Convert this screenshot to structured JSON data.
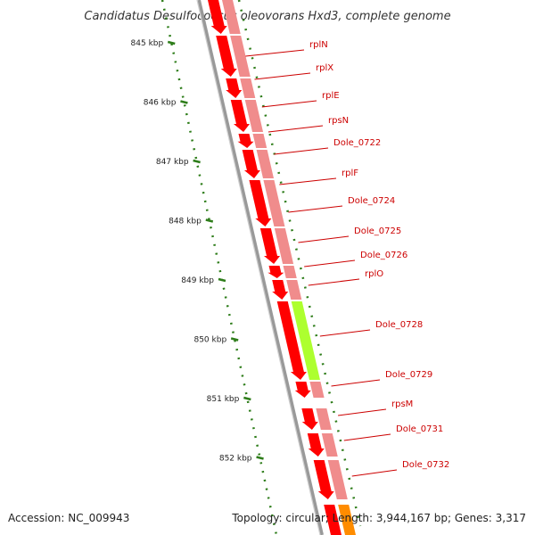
{
  "title": "Candidatus Desulfococcus oleovorans Hxd3, complete genome",
  "footer": {
    "accession": "Accession: NC_009943",
    "topology": "Topology: circular; Length: 3,944,167 bp; Genes: 3,317"
  },
  "scale_ticks": [
    {
      "label": "845 kbp",
      "kbp": 845
    },
    {
      "label": "846 kbp",
      "kbp": 846
    },
    {
      "label": "847 kbp",
      "kbp": 847
    },
    {
      "label": "848 kbp",
      "kbp": 848
    },
    {
      "label": "849 kbp",
      "kbp": 849
    },
    {
      "label": "850 kbp",
      "kbp": 850
    },
    {
      "label": "851 kbp",
      "kbp": 851
    },
    {
      "label": "852 kbp",
      "kbp": 852
    }
  ],
  "genes": [
    {
      "name": "rplN",
      "category": "ribosomal"
    },
    {
      "name": "rplX",
      "category": "ribosomal"
    },
    {
      "name": "rplE",
      "category": "ribosomal"
    },
    {
      "name": "rpsN",
      "category": "ribosomal"
    },
    {
      "name": "Dole_0722",
      "category": "ribosomal"
    },
    {
      "name": "rplF",
      "category": "ribosomal"
    },
    {
      "name": "Dole_0724",
      "category": "ribosomal"
    },
    {
      "name": "Dole_0725",
      "category": "ribosomal"
    },
    {
      "name": "Dole_0726",
      "category": "ribosomal"
    },
    {
      "name": "rplO",
      "category": "ribosomal"
    },
    {
      "name": "Dole_0728",
      "category": "transport"
    },
    {
      "name": "Dole_0729",
      "category": "ribosomal"
    },
    {
      "name": "rpsM",
      "category": "ribosomal"
    },
    {
      "name": "Dole_0731",
      "category": "ribosomal"
    },
    {
      "name": "Dole_0732",
      "category": "ribosomal"
    }
  ],
  "colors": {
    "gene_arrow": "#ff0000",
    "gene_category_default": "#f08c8c",
    "gene_category_highlight": "#adff2f",
    "next_gene_category": "#ff8c00",
    "label": "#cc0000",
    "leader": "#cc0000",
    "backbone": "#999999",
    "scale_dots": "#2e7d1a"
  }
}
